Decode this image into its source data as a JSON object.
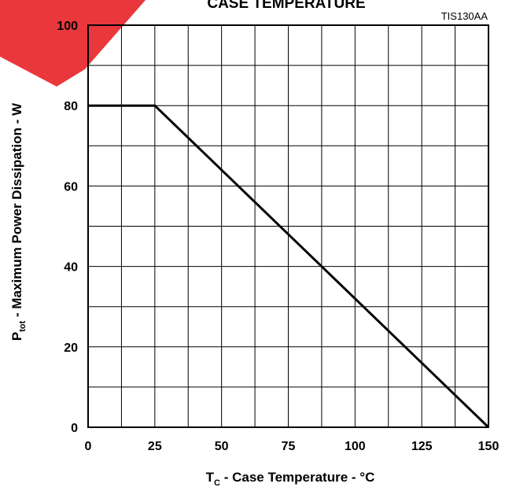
{
  "chart_data": {
    "type": "line",
    "title": "CASE TEMPERATURE",
    "figure_id": "TIS130AA",
    "xlabel": {
      "main": "T",
      "subscript": "C",
      "rest": " - Case Temperature - °C"
    },
    "ylabel": {
      "main": "P",
      "subscript": "tot",
      "rest": " - Maximum Power Dissipation - W"
    },
    "xlim": [
      0,
      150
    ],
    "ylim": [
      0,
      100
    ],
    "x_ticks": [
      0,
      25,
      50,
      75,
      100,
      125,
      150
    ],
    "x_tick_labels": [
      "0",
      "25",
      "50",
      "75",
      "100",
      "125",
      "150"
    ],
    "y_ticks": [
      0,
      20,
      40,
      60,
      80,
      100
    ],
    "y_tick_labels": [
      "0",
      "20",
      "40",
      "60",
      "80",
      "100"
    ],
    "x_grid_step": 12.5,
    "y_grid_step": 10,
    "grid": true,
    "series": [
      {
        "x": [
          0,
          25,
          150
        ],
        "y": [
          80,
          80,
          0
        ],
        "color": "#000000"
      }
    ],
    "watermark_color": "#e8262b"
  }
}
